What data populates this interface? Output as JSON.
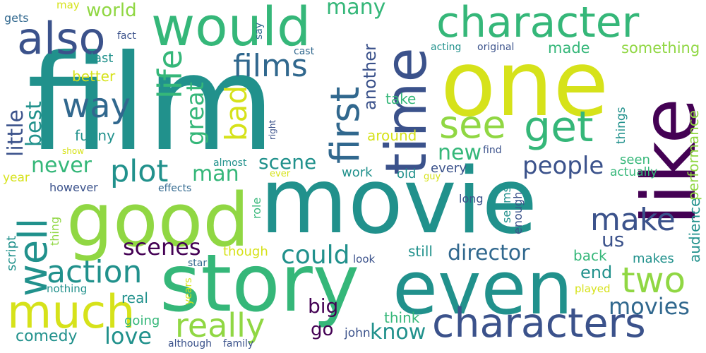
{
  "background": "#ffffff",
  "colors": {
    "purple": "#440154",
    "indigo": "#3b528b",
    "slate": "#31688e",
    "teal": "#21918c",
    "green": "#35b779",
    "lime": "#90d743",
    "yellow": "#d6e21a"
  },
  "words": {
    "film": "film",
    "movie": "movie",
    "one": "one",
    "like": "like",
    "time": "time",
    "story": "story",
    "even": "even",
    "good": "good",
    "would": "would",
    "character": "character",
    "characters": "characters",
    "also": "also",
    "much": "much",
    "first": "first",
    "get": "get",
    "see": "see",
    "two": "two",
    "well": "well",
    "really": "really",
    "life": "life",
    "way": "way",
    "plot": "plot",
    "films": "films",
    "action": "action",
    "make": "make",
    "bad": "bad",
    "great": "great",
    "people": "people",
    "could": "could",
    "scenes": "scenes",
    "movies": "movies",
    "director": "director",
    "many": "many",
    "world": "world",
    "little": "little",
    "best": "best",
    "never": "never",
    "man": "man",
    "scene": "scene",
    "new": "new",
    "love": "love",
    "know": "know",
    "comedy": "comedy",
    "big": "big",
    "another": "another",
    "us": "us",
    "end": "end",
    "something": "something",
    "made": "made",
    "audience": "audience",
    "performance": "performance",
    "better": "better",
    "last": "last",
    "funny": "funny",
    "take": "take",
    "around": "around",
    "every": "every",
    "work": "work",
    "old": "old",
    "seen": "seen",
    "things": "things",
    "actually": "actually",
    "still": "still",
    "back": "back",
    "makes": "makes",
    "real": "real",
    "going": "going",
    "go": "go",
    "john": "john",
    "think": "think",
    "though": "though",
    "nothing": "nothing",
    "script": "script",
    "thing": "thing",
    "year": "year",
    "however": "however",
    "effects": "effects",
    "almost": "almost",
    "role": "role",
    "ever": "ever",
    "guy": "guy",
    "long": "long",
    "seems": "seems",
    "enough": "enough",
    "look": "look",
    "star": "star",
    "years": "years",
    "played": "played",
    "although": "although",
    "family": "family",
    "gets": "gets",
    "may": "may",
    "fact": "fact",
    "say": "say",
    "cast": "cast",
    "acting": "acting",
    "original": "original",
    "right": "right",
    "show": "show",
    "find": "find"
  }
}
